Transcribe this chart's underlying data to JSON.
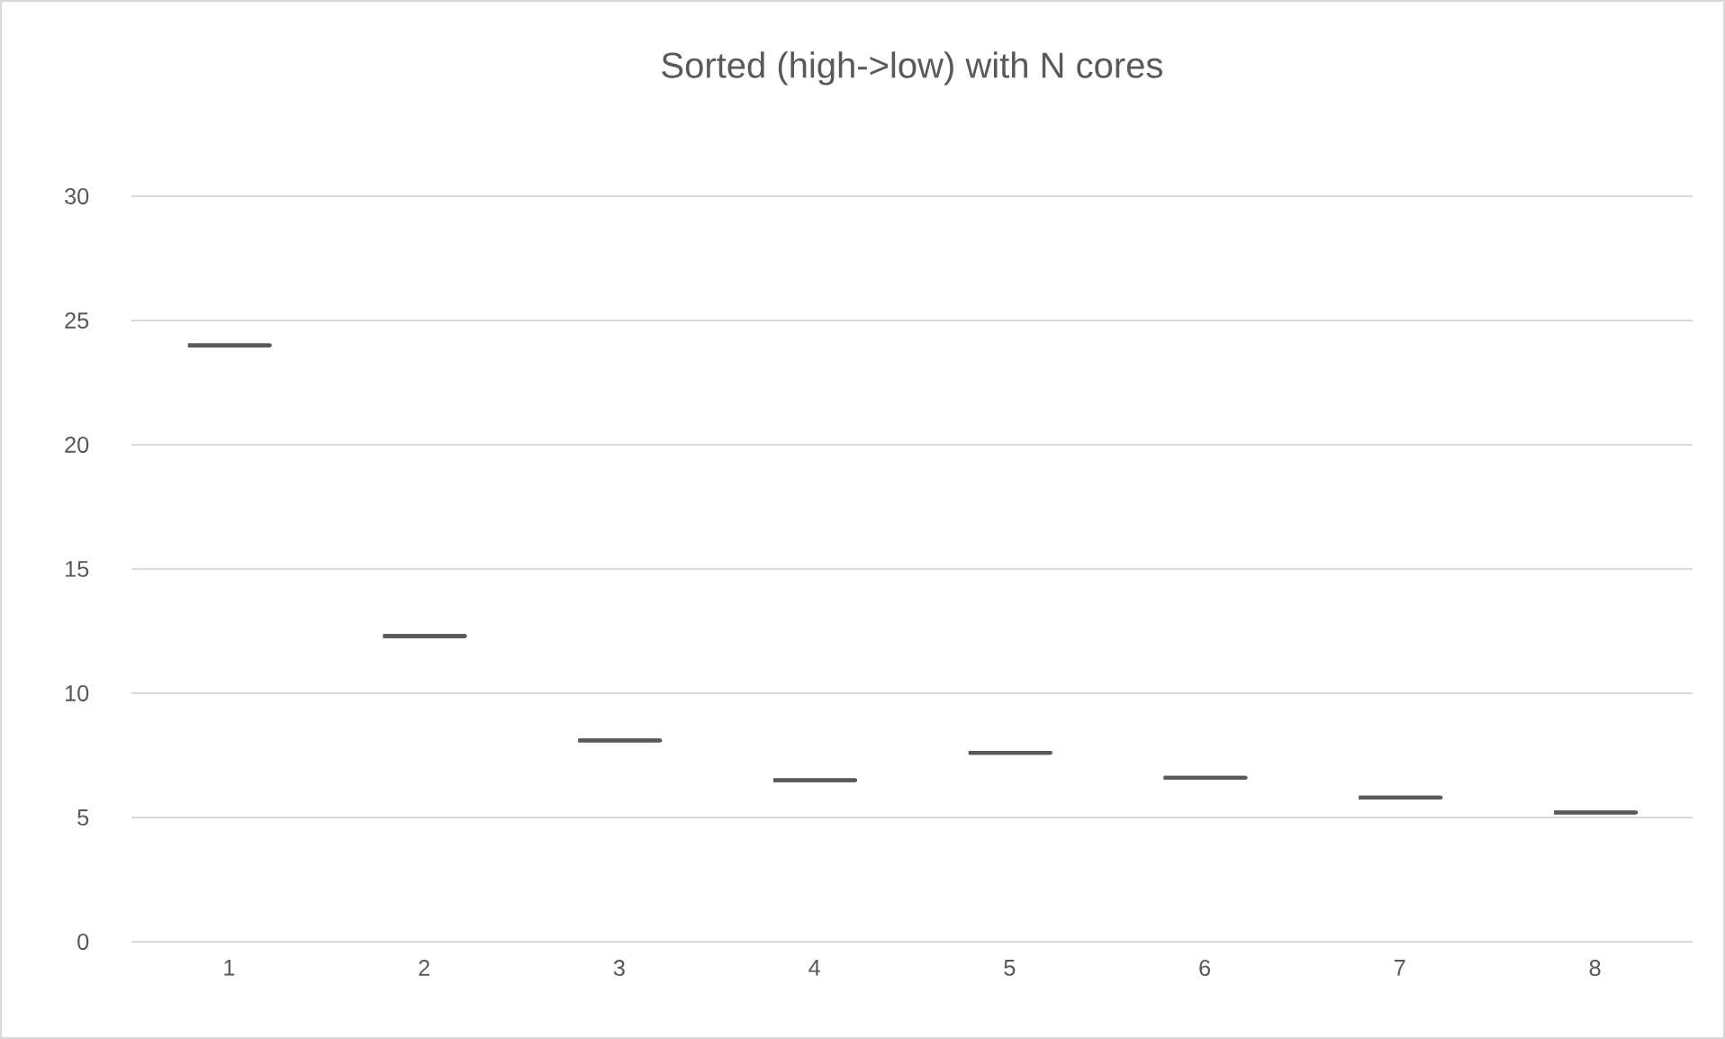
{
  "chart_data": {
    "type": "box",
    "title": "Sorted (high->low) with N cores",
    "categories": [
      "1",
      "2",
      "3",
      "4",
      "5",
      "6",
      "7",
      "8"
    ],
    "boxes": [
      {
        "low": 24.0,
        "q1": 24.0,
        "median": 24.0,
        "q3": 24.0,
        "high": 24.0
      },
      {
        "low": 12.3,
        "q1": 12.3,
        "median": 12.3,
        "q3": 12.3,
        "high": 12.3
      },
      {
        "low": 8.1,
        "q1": 8.1,
        "median": 8.1,
        "q3": 8.1,
        "high": 8.1
      },
      {
        "low": 6.5,
        "q1": 6.5,
        "median": 6.5,
        "q3": 6.5,
        "high": 6.5
      },
      {
        "low": 7.6,
        "q1": 7.6,
        "median": 7.6,
        "q3": 7.6,
        "high": 7.6
      },
      {
        "low": 6.6,
        "q1": 6.6,
        "median": 6.6,
        "q3": 6.6,
        "high": 6.6
      },
      {
        "low": 5.8,
        "q1": 5.8,
        "median": 5.8,
        "q3": 5.8,
        "high": 5.8
      },
      {
        "low": 5.2,
        "q1": 5.2,
        "median": 5.2,
        "q3": 5.2,
        "high": 5.2
      }
    ],
    "color": "#595959",
    "ylim": [
      0,
      30
    ],
    "yticks": [
      0,
      5,
      10,
      15,
      20,
      25,
      30
    ],
    "grid": "y"
  }
}
